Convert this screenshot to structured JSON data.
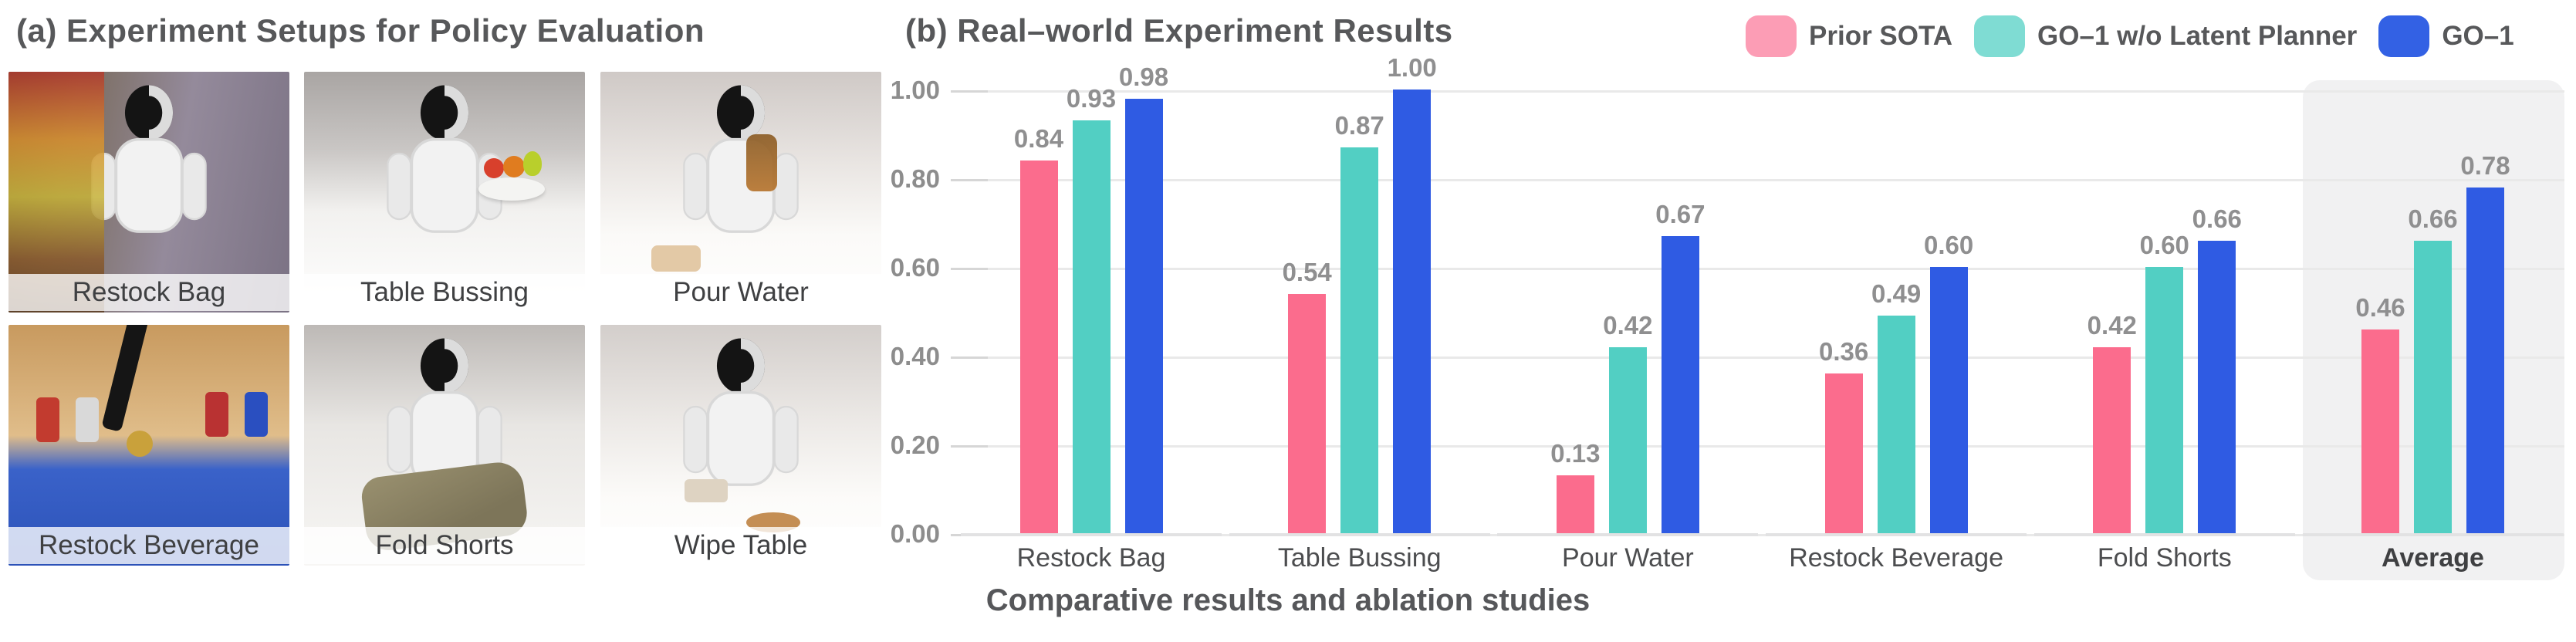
{
  "panel_a": {
    "title": "(a) Experiment Setups for Policy Evaluation",
    "photos": [
      {
        "label": "Restock Bag",
        "scene": "humanoid robot picking snacks from a shelf with colorful bags"
      },
      {
        "label": "Table Bussing",
        "scene": "humanoid robot at a white table with a bowl of fruit"
      },
      {
        "label": "Pour Water",
        "scene": "humanoid robot pouring liquid at a white table"
      },
      {
        "label": "Restock Beverage",
        "scene": "robot gripper placing cans from a wooden shelf into a blue crate"
      },
      {
        "label": "Fold Shorts",
        "scene": "humanoid robot folding khaki shorts on a table"
      },
      {
        "label": "Wipe Table",
        "scene": "humanoid robot wiping a spill on a white table with a sponge"
      }
    ]
  },
  "panel_b": {
    "title": "(b) Real–world Experiment Results",
    "legend": [
      {
        "label": "Prior SOTA",
        "swatch_color": "#FC9DB5"
      },
      {
        "label": "GO–1 w/o Latent Planner",
        "swatch_color": "#7FDCD3"
      },
      {
        "label": "GO–1",
        "swatch_color": "#3361E4"
      }
    ]
  },
  "caption": "Comparative results and ablation studies",
  "chart_data": {
    "type": "bar",
    "title": "(b) Real-world Experiment Results",
    "categories": [
      "Restock Bag",
      "Table Bussing",
      "Pour Water",
      "Restock Beverage",
      "Fold Shorts",
      "Average"
    ],
    "series": [
      {
        "name": "Prior SOTA",
        "color": "#FB6C8D",
        "values": [
          0.84,
          0.54,
          0.13,
          0.36,
          0.42,
          0.46
        ]
      },
      {
        "name": "GO-1 w/o Latent Planner",
        "color": "#52CFC3",
        "values": [
          0.93,
          0.87,
          0.42,
          0.49,
          0.6,
          0.66
        ]
      },
      {
        "name": "GO-1",
        "color": "#2F5BE3",
        "values": [
          0.98,
          1.0,
          0.67,
          0.6,
          0.66,
          0.78
        ]
      }
    ],
    "ylim": [
      0,
      1.0
    ],
    "yticks": [
      0.0,
      0.2,
      0.4,
      0.6,
      0.8,
      1.0
    ],
    "ytick_labels": [
      "0.00",
      "0.20",
      "0.40",
      "0.60",
      "0.80",
      "1.00"
    ],
    "grid": true,
    "value_labels": true,
    "legend_position": "top-right",
    "highlight_category": "Average"
  }
}
